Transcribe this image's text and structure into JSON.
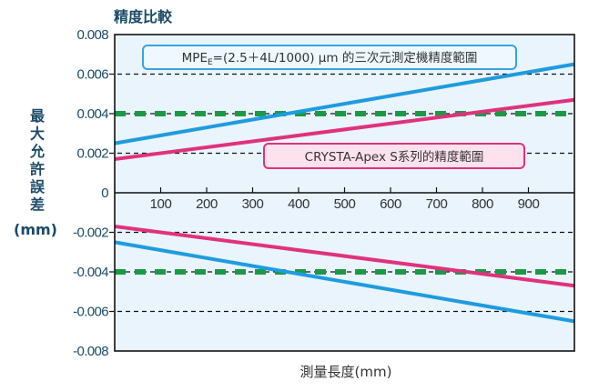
{
  "chart_data": {
    "type": "line",
    "title": "精度比較",
    "xlabel": "測量長度(mm)",
    "ylabel_chars": [
      "最",
      "大",
      "允",
      "許",
      "誤",
      "差"
    ],
    "ylabel_unit": "(mm)",
    "ylabel": "最大允許誤差(mm)",
    "xlim": [
      0,
      1000
    ],
    "ylim": [
      -0.008,
      0.008
    ],
    "x_ticks": [
      {
        "value": 100,
        "label": "100"
      },
      {
        "value": 200,
        "label": "200"
      },
      {
        "value": 300,
        "label": "300"
      },
      {
        "value": 400,
        "label": "400"
      },
      {
        "value": 500,
        "label": "500"
      },
      {
        "value": 600,
        "label": "600"
      },
      {
        "value": 700,
        "label": "700"
      },
      {
        "value": 800,
        "label": "800"
      },
      {
        "value": 900,
        "label": "900"
      }
    ],
    "y_ticks": [
      {
        "value": 0.008,
        "label": "0.008"
      },
      {
        "value": 0.006,
        "label": "0.006"
      },
      {
        "value": 0.004,
        "label": "0.004"
      },
      {
        "value": 0.002,
        "label": "0.002"
      },
      {
        "value": 0,
        "label": "0"
      },
      {
        "value": -0.002,
        "label": "-0.002"
      },
      {
        "value": -0.004,
        "label": "-0.004"
      },
      {
        "value": -0.006,
        "label": "-0.006"
      },
      {
        "value": -0.008,
        "label": "-0.008"
      }
    ],
    "grid": true,
    "gridlines_y": [
      0.006,
      0.004,
      0.002,
      -0.002,
      -0.004,
      -0.006
    ],
    "reference_lines": [
      {
        "value": 0.004,
        "color": "#1a9a45"
      },
      {
        "value": -0.004,
        "color": "#1a9a45"
      }
    ],
    "series": [
      {
        "name": "MPE_E upper (2.5+4L/1000 µm)",
        "color": "#1f9be0",
        "x": [
          0,
          1000
        ],
        "y": [
          0.0025,
          0.0065
        ]
      },
      {
        "name": "MPE_E lower (2.5+4L/1000 µm)",
        "color": "#1f9be0",
        "x": [
          0,
          1000
        ],
        "y": [
          -0.0025,
          -0.0065
        ]
      },
      {
        "name": "CRYSTA-Apex S upper",
        "color": "#e0327c",
        "x": [
          0,
          1000
        ],
        "y": [
          0.0017,
          0.0047
        ]
      },
      {
        "name": "CRYSTA-Apex S lower",
        "color": "#e0327c",
        "x": [
          0,
          1000
        ],
        "y": [
          -0.0017,
          -0.0047
        ]
      }
    ],
    "annotations": {
      "cmm_label": {
        "prefix": "MPE",
        "subscript": "E",
        "rest": "=(2.5＋4L/1000) μm 的三次元測定機精度範圍",
        "color": "#1f9be0"
      },
      "apex_label": {
        "text": "CRYSTA-Apex S系列的精度範圍",
        "color": "#e0327c"
      }
    },
    "colors": {
      "plot_background": "#e9f4fc",
      "axis": "#111111"
    }
  }
}
